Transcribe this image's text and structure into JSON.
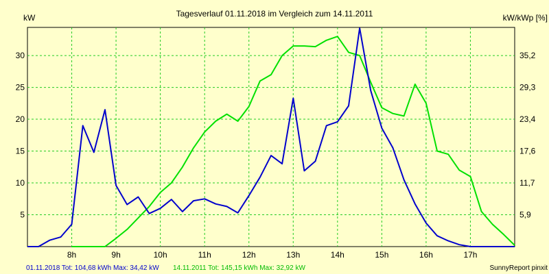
{
  "chart_data": {
    "type": "line",
    "title": "Tagesverlauf 01.11.2018 im Vergleich zum 14.11.2011",
    "ylabel_left": "kW",
    "ylabel_right": "kW/kWp [%]",
    "xlim": [
      7.0,
      18.0
    ],
    "ylim": [
      0,
      34.42
    ],
    "x_ticks": [
      {
        "x": 8,
        "label": "8h"
      },
      {
        "x": 9,
        "label": "9h"
      },
      {
        "x": 10,
        "label": "10h"
      },
      {
        "x": 11,
        "label": "11h"
      },
      {
        "x": 12,
        "label": "12h"
      },
      {
        "x": 13,
        "label": "13h"
      },
      {
        "x": 14,
        "label": "14h"
      },
      {
        "x": 15,
        "label": "15h"
      },
      {
        "x": 16,
        "label": "16h"
      },
      {
        "x": 17,
        "label": "17h"
      }
    ],
    "y_ticks_left": [
      5,
      10,
      15,
      20,
      25,
      30
    ],
    "y_ticks_right": [
      "5,9",
      "11,7",
      "17,6",
      "23,4",
      "29,3",
      "35,2"
    ],
    "grid": true,
    "series": [
      {
        "name": "01.11.2018",
        "color": "#0000cc",
        "x": [
          7.0,
          7.25,
          7.5,
          7.75,
          8.0,
          8.25,
          8.5,
          8.75,
          9.0,
          9.25,
          9.5,
          9.75,
          10.0,
          10.25,
          10.5,
          10.75,
          11.0,
          11.25,
          11.5,
          11.75,
          12.0,
          12.25,
          12.5,
          12.75,
          13.0,
          13.25,
          13.5,
          13.75,
          14.0,
          14.25,
          14.5,
          14.75,
          15.0,
          15.25,
          15.5,
          15.75,
          16.0,
          16.25,
          16.5,
          16.75,
          17.0,
          17.25,
          17.5,
          17.75,
          18.0
        ],
        "y": [
          0,
          0,
          1.0,
          1.5,
          3.5,
          19,
          14.8,
          21.5,
          9.6,
          6.6,
          7.8,
          5.2,
          6.0,
          7.4,
          5.5,
          7.2,
          7.5,
          6.7,
          6.3,
          5.3,
          8.0,
          10.9,
          14.3,
          13.0,
          23.3,
          11.9,
          13.4,
          19.0,
          19.6,
          22.1,
          34.3,
          24.5,
          18.6,
          15.5,
          10.5,
          6.7,
          3.7,
          1.7,
          0.9,
          0.3,
          0,
          0,
          0,
          0,
          0
        ]
      },
      {
        "name": "14.11.2011",
        "color": "#00e000",
        "x": [
          8.0,
          8.5,
          8.75,
          9.0,
          9.25,
          9.5,
          9.75,
          10.0,
          10.25,
          10.5,
          10.75,
          11.0,
          11.25,
          11.5,
          11.75,
          12.0,
          12.25,
          12.5,
          12.75,
          13.0,
          13.25,
          13.5,
          13.75,
          14.0,
          14.25,
          14.5,
          14.75,
          15.0,
          15.25,
          15.5,
          15.75,
          16.0,
          16.25,
          16.5,
          16.75,
          17.0,
          17.25,
          17.5,
          17.75,
          18.0
        ],
        "y": [
          0,
          0,
          0,
          1.3,
          2.7,
          4.5,
          6.3,
          8.5,
          10.0,
          12.5,
          15.5,
          18.0,
          19.7,
          20.8,
          19.7,
          22.0,
          26.0,
          27.0,
          30.0,
          31.5,
          31.5,
          31.4,
          32.4,
          33.0,
          30.5,
          30.0,
          25.8,
          21.8,
          20.9,
          20.5,
          25.5,
          22.5,
          15.0,
          14.5,
          12.0,
          11.0,
          5.5,
          3.5,
          1.9,
          0.2
        ]
      }
    ]
  },
  "footer": {
    "legend_series_1": "01.11.2018 Tot: 104,68 kWh Max: 34,42 kW",
    "legend_series_2": "14.11.2011 Tot: 145,15 kWh Max: 32,92 kW",
    "credit": "SunnyReport pinxit"
  }
}
